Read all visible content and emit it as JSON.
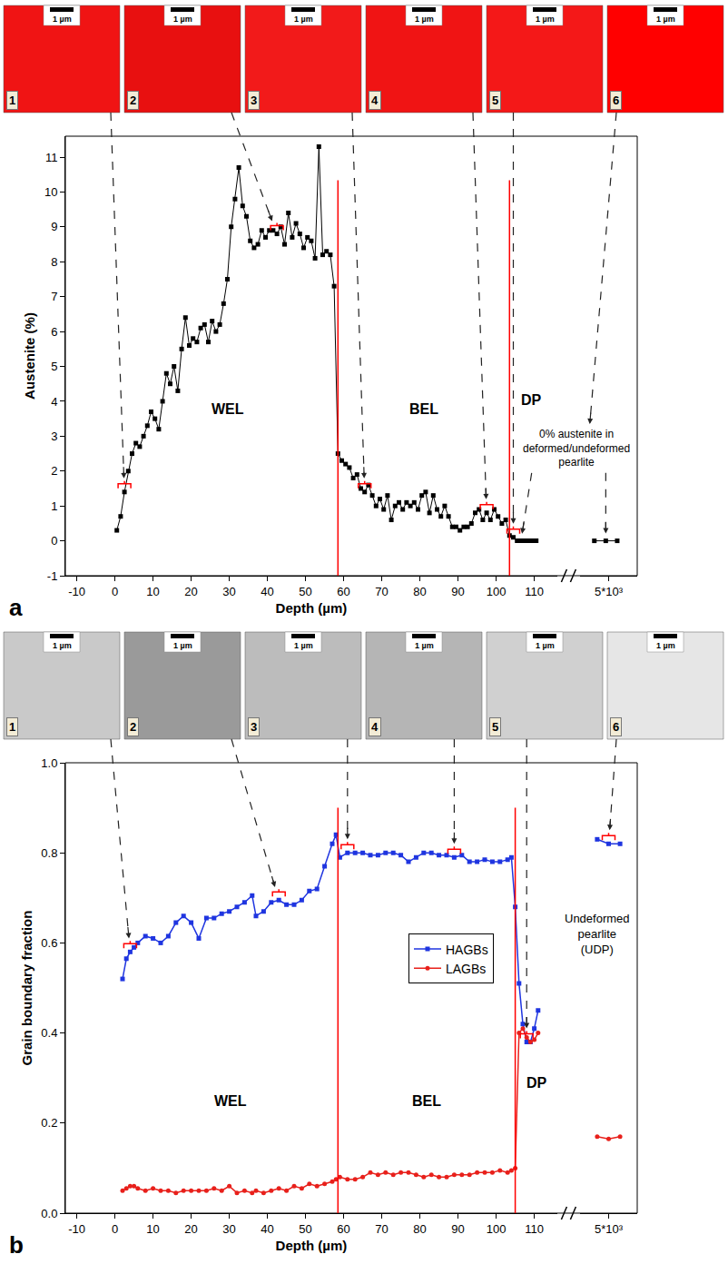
{
  "chart_data": [
    {
      "type": "line",
      "panel": "a",
      "x_label": "Depth (µm)",
      "y_label": "Austenite (%)",
      "xlim": [
        -13,
        116
      ],
      "xticks": [
        -10,
        0,
        10,
        20,
        30,
        40,
        50,
        60,
        70,
        80,
        90,
        100,
        110
      ],
      "x2lim": [
        4900,
        5100
      ],
      "x2ticks": [
        {
          "value": 5000,
          "label": "5*10³"
        }
      ],
      "ylim": [
        -1,
        11.6
      ],
      "yticks": [
        -1,
        0,
        1,
        2,
        3,
        4,
        5,
        6,
        7,
        8,
        9,
        10,
        11
      ],
      "grid": false,
      "series": [
        {
          "color": "#000000",
          "marker": "square",
          "line_style": "solid",
          "x": [
            0.5,
            1.5,
            2.5,
            3.5,
            4.5,
            5.5,
            6.5,
            7.5,
            8.5,
            9.5,
            10.5,
            11.5,
            12.5,
            13.5,
            14.5,
            15.5,
            16.5,
            17.5,
            18.5,
            19.5,
            20.5,
            21.5,
            22.5,
            23.5,
            24.5,
            25.5,
            26.5,
            27.5,
            28.5,
            29.5,
            30.5,
            31.5,
            32.5,
            33.5,
            34.5,
            35.5,
            36.5,
            37.5,
            38.5,
            39.5,
            40.5,
            41.5,
            42.5,
            43.5,
            44.5,
            45.5,
            46.5,
            47.5,
            48.5,
            49.5,
            50.5,
            51.5,
            52.5,
            53.5,
            54.5,
            55.5,
            56.5,
            57.5,
            58.5,
            59.5,
            60.5,
            61.5,
            62.5,
            63.5,
            64.5,
            65.5,
            66.5,
            67.5,
            68.5,
            69.5,
            70.5,
            71.5,
            72.5,
            73.5,
            74.5,
            75.5,
            76.5,
            77.5,
            78.5,
            79.5,
            80.5,
            81.5,
            82.5,
            83.5,
            84.5,
            85.5,
            86.5,
            87.5,
            88.5,
            89.5,
            90.5,
            91.5,
            92.5,
            93.5,
            94.5,
            95.5,
            96.5,
            97.5,
            98.5,
            99.5,
            100.5,
            101.5,
            102.5,
            103.5,
            104.5,
            105.5,
            106.5,
            107.5,
            108.5,
            109.5,
            110.5
          ],
          "values": [
            0.3,
            0.7,
            1.4,
            2.0,
            2.5,
            2.8,
            2.7,
            3.0,
            3.3,
            3.7,
            3.5,
            3.2,
            4.0,
            4.8,
            4.5,
            5.0,
            4.3,
            5.5,
            6.4,
            5.6,
            5.8,
            5.7,
            6.1,
            6.2,
            5.7,
            6.3,
            6.0,
            6.2,
            6.8,
            7.5,
            9.0,
            9.8,
            10.7,
            9.6,
            9.3,
            8.6,
            8.4,
            8.5,
            8.9,
            8.7,
            8.9,
            8.9,
            8.8,
            9.0,
            8.5,
            9.4,
            8.7,
            9.1,
            8.8,
            8.4,
            8.7,
            8.6,
            8.1,
            11.3,
            8.2,
            8.3,
            8.2,
            7.3,
            2.5,
            2.3,
            2.2,
            2.1,
            1.8,
            1.9,
            1.5,
            1.4,
            1.6,
            1.3,
            1.0,
            1.2,
            0.9,
            1.3,
            0.6,
            1.0,
            1.1,
            0.9,
            1.1,
            1.0,
            1.1,
            0.9,
            1.3,
            1.4,
            0.8,
            1.3,
            0.9,
            0.7,
            1.0,
            0.7,
            0.4,
            0.4,
            0.3,
            0.4,
            0.4,
            0.5,
            0.8,
            0.9,
            0.6,
            0.8,
            0.6,
            0.9,
            0.7,
            0.5,
            0.6,
            0.15,
            0.1,
            0,
            0,
            0,
            0,
            0,
            0
          ],
          "x2": [
            4950,
            4990,
            5030
          ],
          "values2": [
            0,
            0,
            0
          ]
        }
      ],
      "boundaries": [
        58.5,
        103.5
      ],
      "region_labels": [
        "WEL",
        "BEL",
        "DP"
      ],
      "note": "0% austenite in deformed/undeformed pearlite",
      "note_targets": [
        106.5,
        4990
      ],
      "scale_bar": "1 µm",
      "images": [
        {
          "label": "1",
          "depth": 2.5
        },
        {
          "label": "2",
          "depth": 42.5
        },
        {
          "label": "3",
          "depth": 65.5
        },
        {
          "label": "4",
          "depth": 97.5
        },
        {
          "label": "5",
          "depth": 104.5
        },
        {
          "label": "6"
        }
      ]
    },
    {
      "type": "line",
      "panel": "b",
      "x_label": "Depth (µm)",
      "y_label": "Grain boundary fraction",
      "xlim": [
        -13,
        116
      ],
      "xticks": [
        -10,
        0,
        10,
        20,
        30,
        40,
        50,
        60,
        70,
        80,
        90,
        100,
        110
      ],
      "x2lim": [
        4900,
        5100
      ],
      "x2ticks": [
        {
          "value": 5000,
          "label": "5*10³"
        }
      ],
      "ylim": [
        0,
        1
      ],
      "yticks": [
        {
          "value": 0,
          "label": "0.0"
        },
        0.2,
        0.4,
        0.6,
        0.8,
        {
          "value": 1,
          "label": "1.0"
        }
      ],
      "grid": false,
      "legend": "center",
      "series": [
        {
          "name": "HAGBs",
          "color": "#1f35e0",
          "marker": "square",
          "line_style": "solid",
          "x": [
            2,
            3,
            4,
            5,
            6,
            8,
            10,
            12,
            14,
            16,
            18,
            20,
            22,
            24,
            26,
            28,
            30,
            32,
            34,
            36,
            37,
            39,
            41,
            43,
            45,
            47,
            49,
            51,
            53,
            55,
            57,
            58,
            59,
            61,
            63,
            65,
            67,
            69,
            71,
            73,
            75,
            77,
            79,
            81,
            83,
            85,
            87,
            89,
            91,
            93,
            95,
            97,
            99,
            101,
            103,
            104,
            105,
            106,
            107,
            108,
            109,
            110,
            111
          ],
          "values": [
            0.52,
            0.565,
            0.58,
            0.59,
            0.6,
            0.615,
            0.61,
            0.6,
            0.615,
            0.645,
            0.66,
            0.645,
            0.61,
            0.655,
            0.655,
            0.665,
            0.67,
            0.68,
            0.69,
            0.705,
            0.66,
            0.67,
            0.69,
            0.695,
            0.685,
            0.685,
            0.695,
            0.715,
            0.72,
            0.77,
            0.82,
            0.84,
            0.79,
            0.8,
            0.8,
            0.8,
            0.795,
            0.795,
            0.8,
            0.8,
            0.795,
            0.78,
            0.79,
            0.8,
            0.8,
            0.795,
            0.795,
            0.79,
            0.795,
            0.78,
            0.78,
            0.785,
            0.78,
            0.78,
            0.785,
            0.79,
            0.68,
            0.51,
            0.42,
            0.38,
            0.38,
            0.41,
            0.45
          ],
          "x2": [
            4960,
            5000,
            5040
          ],
          "values2": [
            0.83,
            0.82,
            0.82
          ]
        },
        {
          "name": "LAGBs",
          "color": "#e8201b",
          "marker": "circle",
          "line_style": "solid",
          "x": [
            2,
            3,
            4,
            5,
            6,
            8,
            10,
            12,
            14,
            16,
            18,
            20,
            22,
            24,
            26,
            28,
            30,
            32,
            34,
            36,
            37,
            39,
            41,
            43,
            45,
            47,
            49,
            51,
            53,
            55,
            57,
            58,
            59,
            61,
            63,
            65,
            67,
            69,
            71,
            73,
            75,
            77,
            79,
            81,
            83,
            85,
            87,
            89,
            91,
            93,
            95,
            97,
            99,
            101,
            103,
            104,
            105,
            106,
            107,
            108,
            109,
            110,
            111
          ],
          "values": [
            0.05,
            0.055,
            0.06,
            0.06,
            0.055,
            0.05,
            0.055,
            0.05,
            0.05,
            0.045,
            0.05,
            0.05,
            0.05,
            0.05,
            0.055,
            0.05,
            0.06,
            0.045,
            0.05,
            0.045,
            0.05,
            0.045,
            0.05,
            0.055,
            0.05,
            0.06,
            0.055,
            0.065,
            0.06,
            0.065,
            0.07,
            0.075,
            0.08,
            0.075,
            0.075,
            0.08,
            0.09,
            0.085,
            0.09,
            0.085,
            0.09,
            0.09,
            0.085,
            0.08,
            0.085,
            0.08,
            0.08,
            0.085,
            0.085,
            0.085,
            0.09,
            0.09,
            0.09,
            0.095,
            0.09,
            0.095,
            0.1,
            0.4,
            0.41,
            0.39,
            0.38,
            0.385,
            0.4
          ],
          "x2": [
            4960,
            5000,
            5040
          ],
          "values2": [
            0.17,
            0.165,
            0.17
          ]
        }
      ],
      "boundaries": [
        58.5,
        105
      ],
      "region_labels": [
        "WEL",
        "BEL",
        "DP"
      ],
      "note": "Undeformed pearlite (UDP)",
      "scale_bar": "1 µm",
      "images": [
        {
          "label": "1",
          "depth": 4
        },
        {
          "label": "2",
          "depth": 43
        },
        {
          "label": "3",
          "depth": 61
        },
        {
          "label": "4",
          "depth": 89
        },
        {
          "label": "5",
          "depth": 108
        },
        {
          "label": "6",
          "depth": 5000
        }
      ]
    }
  ]
}
